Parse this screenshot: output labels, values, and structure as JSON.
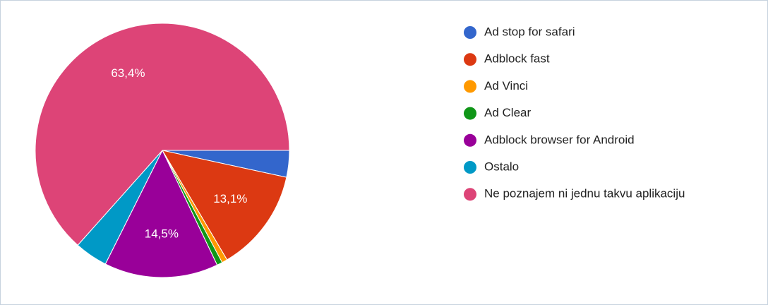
{
  "chart_data": {
    "type": "pie",
    "categories": [
      "Ad stop for safari",
      "Adblock fast",
      "Ad Vinci",
      "Ad Clear",
      "Adblock browser for Android",
      "Ostalo",
      "Ne poznajem ni jednu takvu aplikaciju"
    ],
    "values": [
      3.4,
      13.1,
      0.7,
      0.7,
      14.5,
      4.2,
      63.4
    ],
    "value_labels": [
      null,
      "13,1%",
      null,
      null,
      "14,5%",
      null,
      "63,4%"
    ],
    "colors": [
      "#3366cc",
      "#dc3912",
      "#ff9900",
      "#109618",
      "#990099",
      "#0099c6",
      "#dd4477"
    ],
    "legend": "right"
  }
}
